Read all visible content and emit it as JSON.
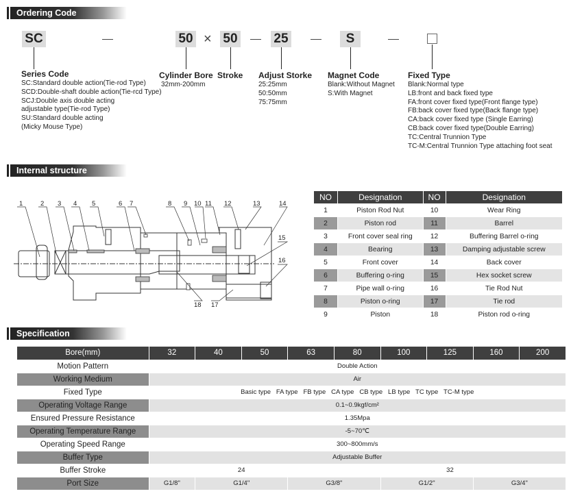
{
  "sections": {
    "ordering": "Ordering Code",
    "internal": "Internal structure",
    "spec": "Specification"
  },
  "ordering": {
    "codes": {
      "series": "SC",
      "bore": "50",
      "times": "×",
      "stroke": "50",
      "adjust": "25",
      "magnet": "S",
      "fixed": ""
    },
    "series": {
      "title": "Series Code",
      "lines": [
        "SC:Standard double action(Tie-rod Type)",
        "SCD:Double-shaft double action(Tie-rcd Type)",
        "SCJ:Double axis double acting",
        "adjustable type(Tie-rod Type)",
        "SU:Standard double acting",
        "(Micky Mouse Type)"
      ]
    },
    "bore": {
      "title": "Cylinder Bore",
      "lines": [
        "32mm-200mm"
      ]
    },
    "stroke": {
      "title": "Stroke"
    },
    "adjust": {
      "title": "Adjust Storke",
      "lines": [
        "25:25mm",
        "50:50mm",
        "75:75mm"
      ]
    },
    "magnet": {
      "title": "Magnet Code",
      "lines": [
        "Blank:Without Magnet",
        "S:With Magnet"
      ]
    },
    "fixed": {
      "title": "Fixed Type",
      "lines": [
        "Blank:Normal type",
        "LB:front and back fixed type",
        "FA:front cover fixed type(Front flange type)",
        "FB:back cover fixed type(Back flange type)",
        "CA:back cover fixed type (Single Earring)",
        "CB:back cover fixed type(Double Earring)",
        "TC:Central Trunnion Type",
        "TC-M:Central Trunnion Type attaching foot seat"
      ]
    }
  },
  "diagram": {
    "labels": [
      "1",
      "2",
      "3",
      "4",
      "5",
      "6",
      "7",
      "8",
      "9",
      "10",
      "11",
      "12",
      "13",
      "14",
      "15",
      "16",
      "17",
      "18"
    ]
  },
  "parts": {
    "headers": [
      "NO",
      "Designation",
      "NO",
      "Designation"
    ],
    "rows": [
      [
        "1",
        "Piston Rod Nut",
        "10",
        "Wear Ring"
      ],
      [
        "2",
        "Piston rod",
        "11",
        "Barrel"
      ],
      [
        "3",
        "Front cover seal ring",
        "12",
        "Buffering Barrel o-ring"
      ],
      [
        "4",
        "Bearing",
        "13",
        "Damping adjustable screw"
      ],
      [
        "5",
        "Front cover",
        "14",
        "Back cover"
      ],
      [
        "6",
        "Buffering o-ring",
        "15",
        "Hex socket screw"
      ],
      [
        "7",
        "Pipe wall o-ring",
        "16",
        "Tie Rod Nut"
      ],
      [
        "8",
        "Piston o-ring",
        "17",
        "Tie rod"
      ],
      [
        "9",
        "Piston",
        "18",
        "Piston rod o-ring"
      ]
    ]
  },
  "spec": {
    "bore_label": "Bore(mm)",
    "bores": [
      "32",
      "40",
      "50",
      "63",
      "80",
      "100",
      "125",
      "160",
      "200"
    ],
    "motion": {
      "label": "Motion Pattern",
      "value": "Double Action"
    },
    "medium": {
      "label": "Working Medium",
      "value": "Air"
    },
    "fixed": {
      "label": "Fixed Type",
      "value": "Basic type   FA type   FB type   CA type   CB type   LB type   TC type   TC-M type"
    },
    "voltage": {
      "label": "Operating Voltage Range",
      "value": "0.1~0.9kgf/cm²"
    },
    "pressure": {
      "label": "Ensured Pressure Resistance",
      "value": "1.35Mpa"
    },
    "temp": {
      "label": "Operating Temperature Range",
      "value": "-5~70℃"
    },
    "speed": {
      "label": "Operating Speed Range",
      "value": "300~800mm/s"
    },
    "buffer": {
      "label": "Buffer Type",
      "value": "Adjustable Buffer"
    },
    "buffer_stroke": {
      "label": "Buffer Stroke",
      "values": [
        "24",
        "32"
      ]
    },
    "port": {
      "label": "Port Size",
      "values": [
        "G1/8\"",
        "G1/4\"",
        "G3/8\"",
        "G1/2\"",
        "G3/4\""
      ]
    }
  }
}
